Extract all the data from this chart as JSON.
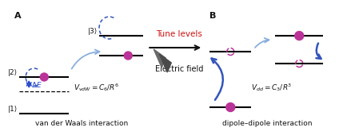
{
  "bg_color": "#ffffff",
  "line_color": "#111111",
  "atom_color": "#bb3399",
  "arrow_blue_light": "#88aedd",
  "arrow_blue_dark": "#3355bb",
  "dE_color": "#2244cc",
  "label_A": "A",
  "label_B": "B",
  "level3_label": "|3⟩",
  "level2_label": "|2⟩",
  "level1_label": "|1⟩",
  "tune_label": "Tune levels",
  "efield_label": "Electric field",
  "footer_A": "van der Waals interaction",
  "footer_B": "dipole–dipole interaction",
  "tune_color": "#cc1111",
  "vdw_text": "$V_{vdW} = C_6/R^6$",
  "vdd_text": "$V_{dd} = C_3/R^3$"
}
